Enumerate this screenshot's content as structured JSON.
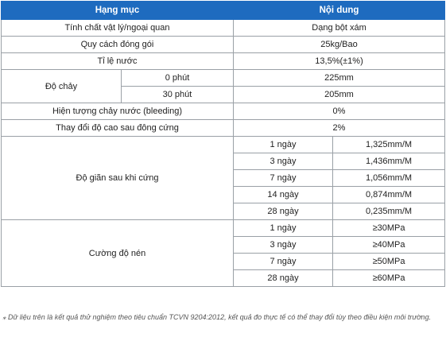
{
  "header": {
    "col1": "Hạng mục",
    "col2": "Nội dung"
  },
  "rows": {
    "physical": {
      "label": "Tính chất vật lý/ngoại quan",
      "value": "Dạng bột xám"
    },
    "packing": {
      "label": "Quy cách đóng gói",
      "value": "25kg/Bao"
    },
    "water_ratio": {
      "label": "Tỉ lệ nước",
      "value": "13,5%(±1%)"
    },
    "flow": {
      "label": "Độ chảy",
      "items": [
        {
          "time": "0 phút",
          "value": "225mm"
        },
        {
          "time": "30 phút",
          "value": "205mm"
        }
      ]
    },
    "bleeding": {
      "label": "Hiện tượng chảy nước (bleeding)",
      "value": "0%"
    },
    "height_change": {
      "label": "Thay đổi độ cao sau đông cứng",
      "value": "2%"
    },
    "expansion": {
      "label": "Độ giãn sau khi cứng",
      "items": [
        {
          "age": "1 ngày",
          "value": "1,325mm/M"
        },
        {
          "age": "3 ngày",
          "value": "1,436mm/M"
        },
        {
          "age": "7 ngày",
          "value": "1,056mm/M"
        },
        {
          "age": "14 ngày",
          "value": "0,874mm/M"
        },
        {
          "age": "28 ngày",
          "value": "0,235mm/M"
        }
      ]
    },
    "compressive": {
      "label": "Cường độ nén",
      "items": [
        {
          "age": "1 ngày",
          "value": "≥30MPa"
        },
        {
          "age": "3 ngày",
          "value": "≥40MPa"
        },
        {
          "age": "7 ngày",
          "value": "≥50MPa"
        },
        {
          "age": "28 ngày",
          "value": "≥60MPa"
        }
      ]
    }
  },
  "footnote": "⁎ Dữ liệu trên là kết quả thử nghiệm theo tiêu chuẩn TCVN 9204:2012, kết quả đo thực tế có thể thay đổi tùy theo điều kiện môi trường."
}
